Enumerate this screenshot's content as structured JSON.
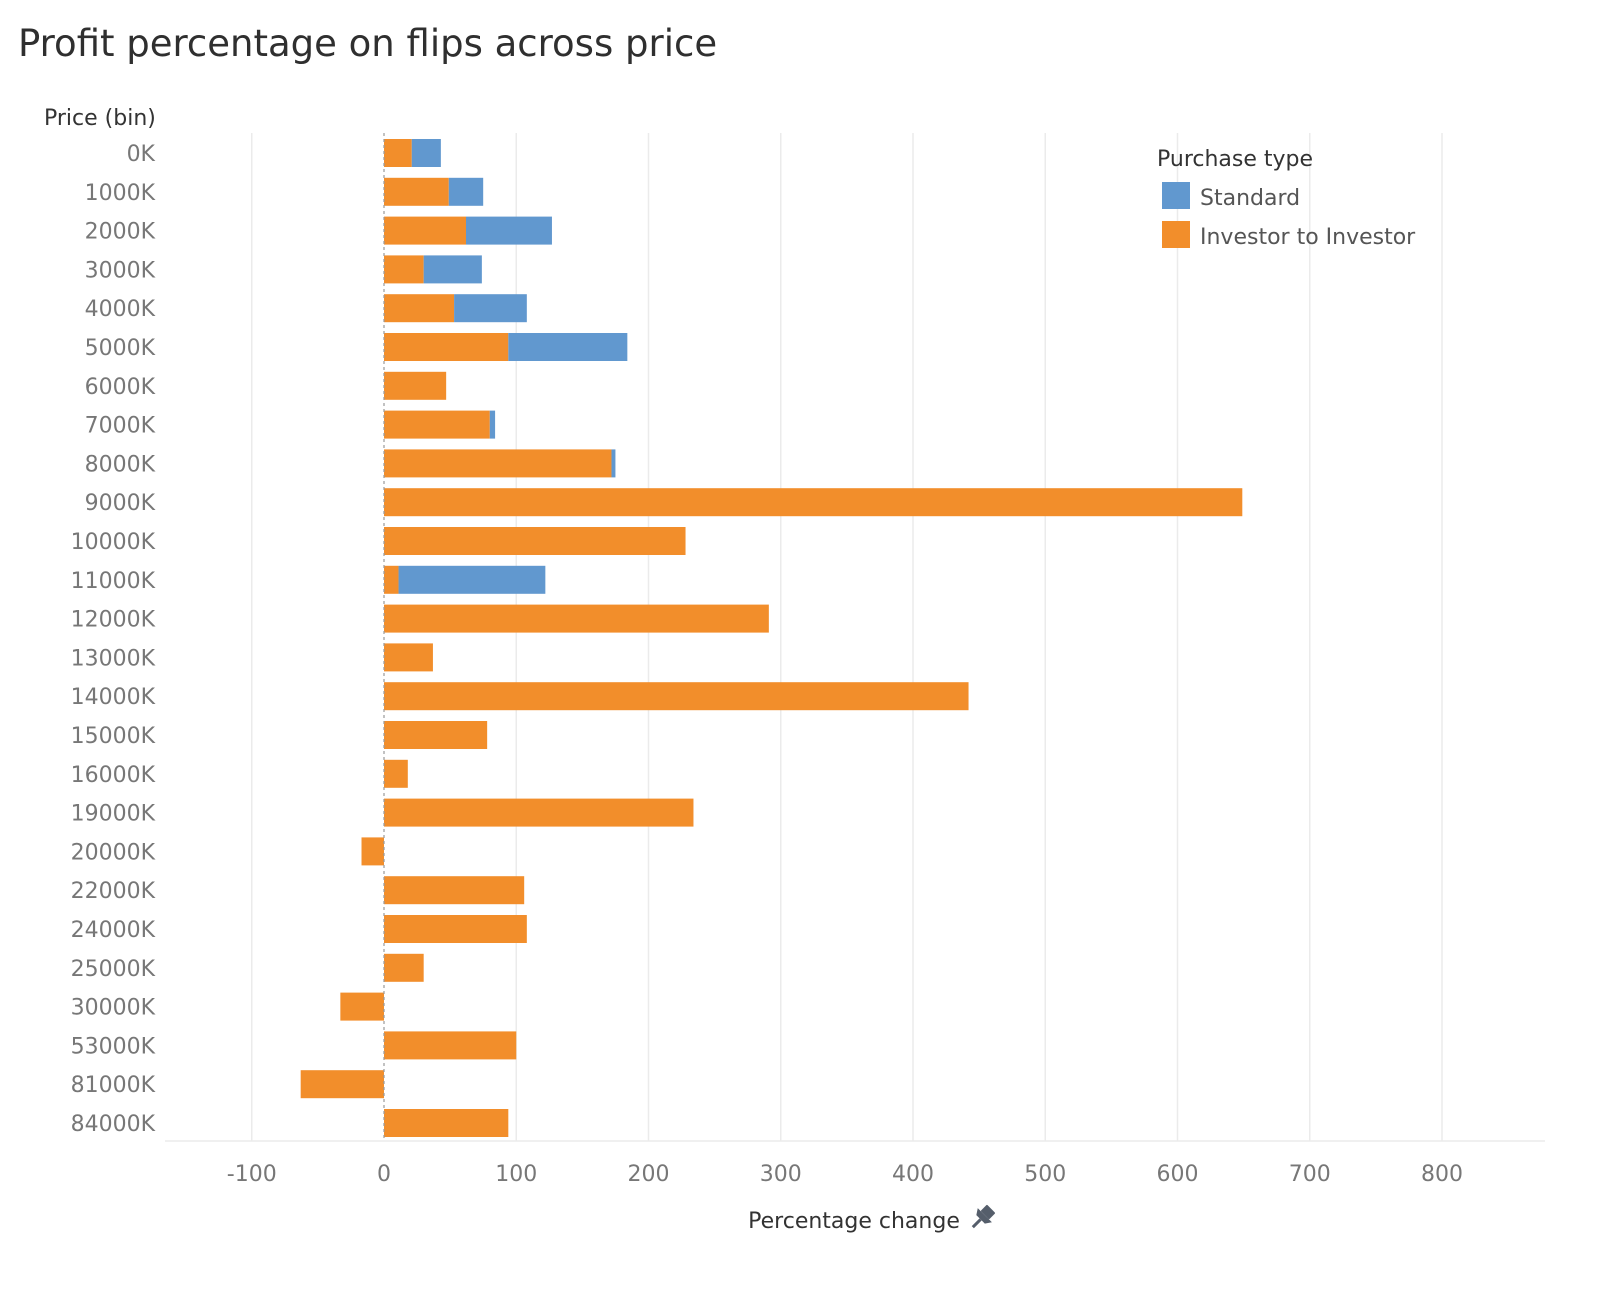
{
  "title": "Profit percentage on flips across price",
  "colors": {
    "standard": "#6198cf",
    "investor": "#f28e2b",
    "grid": "#ebebeb",
    "axis_text": "#777777",
    "label_text": "#333333"
  },
  "chart_data": {
    "type": "bar",
    "orientation": "horizontal",
    "stacked": true,
    "title": "Profit percentage on flips across price",
    "ylabel": "Price (bin)",
    "xlabel": "Percentage change",
    "xlabel_icon": "pin-icon",
    "xlim": [
      -165,
      870
    ],
    "xticks": [
      -100,
      0,
      100,
      200,
      300,
      400,
      500,
      600,
      700,
      800
    ],
    "grid": "vertical",
    "legend": {
      "title": "Purchase type",
      "position": "top-right",
      "entries": [
        "Standard",
        "Investor to Investor"
      ]
    },
    "categories": [
      "0K",
      "1000K",
      "2000K",
      "3000K",
      "4000K",
      "5000K",
      "6000K",
      "7000K",
      "8000K",
      "9000K",
      "10000K",
      "11000K",
      "12000K",
      "13000K",
      "14000K",
      "15000K",
      "16000K",
      "19000K",
      "20000K",
      "22000K",
      "24000K",
      "25000K",
      "30000K",
      "53000K",
      "81000K",
      "84000K"
    ],
    "series": [
      {
        "name": "Investor to Investor",
        "values": [
          21,
          49,
          62,
          30,
          53,
          94,
          47,
          80,
          172,
          649,
          228,
          11,
          291,
          37,
          442,
          78,
          18,
          234,
          -17,
          106,
          108,
          30,
          -33,
          100,
          -63,
          94
        ]
      },
      {
        "name": "Standard",
        "values": [
          22,
          26,
          65,
          44,
          55,
          90,
          0,
          4,
          3,
          0,
          0,
          111,
          0,
          0,
          0,
          0,
          0,
          0,
          0,
          0,
          0,
          0,
          0,
          0,
          0,
          0
        ]
      }
    ]
  }
}
